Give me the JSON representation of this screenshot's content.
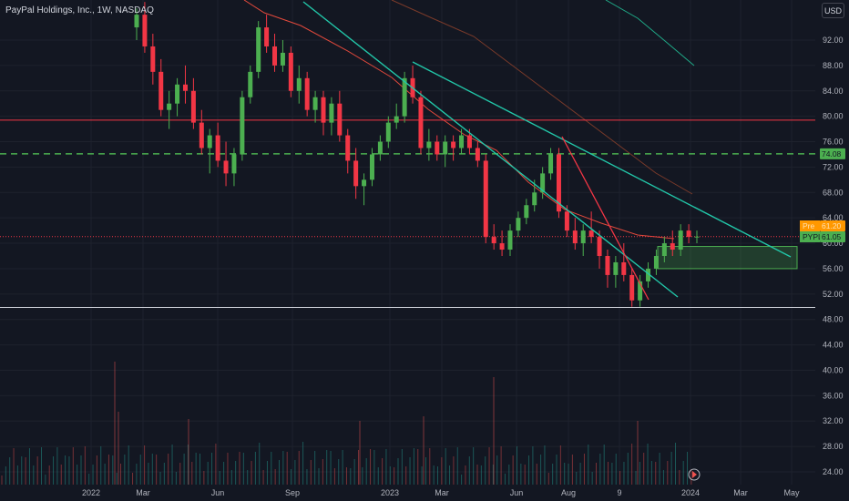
{
  "header": {
    "symbol_title": "PayPal Holdings, Inc., 1W, NASDAQ",
    "currency_label": "USD"
  },
  "price_axis": {
    "ticks": [
      "92.00",
      "88.00",
      "84.00",
      "80.00",
      "76.00",
      "72.00",
      "68.00",
      "64.00",
      "60.00",
      "56.00",
      "52.00",
      "48.00",
      "44.00",
      "40.00",
      "36.00",
      "32.00",
      "28.00",
      "24.00"
    ]
  },
  "time_axis": {
    "labels": [
      "2022",
      "Mar",
      "Jun",
      "Sep",
      "2023",
      "Mar",
      "Jun",
      "Aug",
      "9",
      "2024",
      "Mar",
      "May"
    ]
  },
  "price_flags": [
    {
      "name": "level-flag",
      "label": "",
      "value": "74.08",
      "color": "#4caf50",
      "text_color": "#131722"
    },
    {
      "name": "premarket-flag",
      "label": "Pre",
      "value": "61.20",
      "color": "#ff9800",
      "text_color": "#ffe0b2"
    },
    {
      "name": "symbol-flag",
      "label": "PYPL",
      "value": "61.05",
      "color": "#4caf50",
      "text_color": "#131722"
    }
  ],
  "colors": {
    "background": "#131722",
    "up": "#26a69a",
    "down": "#ef5350",
    "trendline": "#22c7a9",
    "resistance": "#f23645",
    "support_dashed": "#4caf50",
    "ma_fast": "#e2493c",
    "ma_slow": "#7a3a2a",
    "ma_long": "#1fa987",
    "zone_fill": "rgba(76,175,80,0.25)",
    "zone_border": "#4caf50"
  },
  "chart_data": {
    "type": "candlestick",
    "title": "PayPal Holdings, Inc., 1W, NASDAQ",
    "ylabel": "USD",
    "ylim": [
      22,
      96
    ],
    "x_labels": [
      "2022",
      "Mar",
      "Jun",
      "Sep",
      "2023",
      "Mar",
      "Jun",
      "Aug",
      "9",
      "2024",
      "Mar",
      "May"
    ],
    "candles_ohlc": [
      [
        94,
        97,
        92,
        96
      ],
      [
        96,
        98,
        90,
        91
      ],
      [
        91,
        93,
        85,
        87
      ],
      [
        87,
        89,
        80,
        81
      ],
      [
        81,
        84,
        78,
        82
      ],
      [
        82,
        86,
        80,
        85
      ],
      [
        85,
        88,
        82,
        84
      ],
      [
        84,
        86,
        78,
        79
      ],
      [
        79,
        81,
        74,
        75
      ],
      [
        75,
        78,
        71,
        77
      ],
      [
        77,
        79,
        72,
        73
      ],
      [
        73,
        76,
        69,
        71
      ],
      [
        71,
        75,
        69,
        74
      ],
      [
        74,
        84,
        73,
        83
      ],
      [
        83,
        88,
        82,
        87
      ],
      [
        87,
        95,
        86,
        94
      ],
      [
        94,
        96,
        90,
        91
      ],
      [
        91,
        93,
        87,
        88
      ],
      [
        88,
        92,
        87,
        90
      ],
      [
        90,
        91,
        83,
        84
      ],
      [
        84,
        88,
        82,
        86
      ],
      [
        86,
        87,
        80,
        81
      ],
      [
        81,
        84,
        79,
        83
      ],
      [
        83,
        84,
        77,
        79
      ],
      [
        79,
        83,
        77,
        82
      ],
      [
        82,
        84,
        76,
        77
      ],
      [
        77,
        78,
        71,
        73
      ],
      [
        73,
        75,
        67,
        69
      ],
      [
        69,
        71,
        66,
        70
      ],
      [
        70,
        75,
        69,
        74
      ],
      [
        74,
        77,
        73,
        76
      ],
      [
        76,
        80,
        75,
        79
      ],
      [
        79,
        82,
        78,
        80
      ],
      [
        80,
        87,
        79,
        86
      ],
      [
        86,
        88,
        82,
        83
      ],
      [
        83,
        84,
        74,
        75
      ],
      [
        75,
        78,
        73,
        76
      ],
      [
        76,
        77,
        73,
        74
      ],
      [
        74,
        77,
        72,
        76
      ],
      [
        76,
        77,
        73,
        75
      ],
      [
        75,
        78,
        74,
        77
      ],
      [
        77,
        78,
        74,
        75
      ],
      [
        75,
        76,
        72,
        73
      ],
      [
        73,
        74,
        60,
        61
      ],
      [
        61,
        63,
        59,
        60
      ],
      [
        60,
        62,
        58,
        59
      ],
      [
        59,
        63,
        58,
        62
      ],
      [
        62,
        65,
        61,
        64
      ],
      [
        64,
        67,
        63,
        66
      ],
      [
        66,
        70,
        65,
        68
      ],
      [
        68,
        72,
        67,
        71
      ],
      [
        71,
        75,
        70,
        74
      ],
      [
        74,
        75,
        64,
        65
      ],
      [
        65,
        66,
        61,
        62
      ],
      [
        62,
        64,
        59,
        60
      ],
      [
        60,
        63,
        58,
        62
      ],
      [
        62,
        65,
        60,
        61
      ],
      [
        61,
        62,
        56,
        58
      ],
      [
        58,
        59,
        53,
        55
      ],
      [
        55,
        58,
        53,
        57
      ],
      [
        57,
        60,
        54,
        55
      ],
      [
        55,
        56,
        50,
        51
      ],
      [
        51,
        55,
        50,
        54
      ],
      [
        54,
        57,
        53,
        56
      ],
      [
        56,
        59,
        55,
        58
      ],
      [
        58,
        61,
        57,
        60
      ],
      [
        60,
        62,
        58,
        59
      ],
      [
        59,
        63,
        58,
        62
      ],
      [
        62,
        63,
        60,
        61
      ],
      [
        61,
        62,
        60,
        61.05
      ]
    ],
    "moving_averages": [
      {
        "name": "",
        "color": "#e2493c",
        "points": [
          [
            268,
            0
          ],
          [
            290,
            14
          ],
          [
            330,
            28
          ],
          [
            380,
            55
          ],
          [
            430,
            85
          ],
          [
            470,
            120
          ],
          [
            510,
            148
          ],
          [
            545,
            165
          ],
          [
            580,
            200
          ],
          [
            620,
            230
          ],
          [
            660,
            245
          ],
          [
            700,
            258
          ],
          [
            740,
            262
          ]
        ]
      },
      {
        "name": "",
        "color": "#7a3a2a",
        "points": [
          [
            430,
            0
          ],
          [
            470,
            18
          ],
          [
            520,
            40
          ],
          [
            560,
            70
          ],
          [
            600,
            100
          ],
          [
            640,
            130
          ],
          [
            680,
            160
          ],
          [
            720,
            190
          ],
          [
            760,
            213
          ]
        ]
      },
      {
        "name": "",
        "color": "#1fa987",
        "points": [
          [
            665,
            0
          ],
          [
            700,
            20
          ],
          [
            730,
            45
          ],
          [
            762,
            72
          ]
        ]
      }
    ],
    "horizontal_levels": [
      {
        "value": 79.4,
        "color": "#f23645",
        "style": "solid"
      },
      {
        "value": 74.08,
        "color": "#4caf50",
        "style": "dashed"
      },
      {
        "value": 61.05,
        "color": "#f23645",
        "style": "dotted"
      },
      {
        "value": 49.9,
        "color": "#d1d4dc",
        "style": "solid"
      }
    ],
    "support_zone": {
      "from": 56,
      "to": 59.5
    },
    "volume_note": "",
    "volume": [
      3,
      5,
      6,
      4,
      9,
      7,
      5,
      4,
      6,
      5,
      8,
      10,
      6,
      4,
      5,
      12,
      7,
      5,
      6,
      4,
      7,
      8,
      9,
      6,
      5,
      5,
      6,
      7,
      9,
      8,
      6,
      7,
      10,
      5,
      4,
      6,
      5,
      7,
      4,
      5,
      5,
      6,
      4,
      12,
      6,
      8,
      7,
      6,
      5,
      9,
      6,
      5,
      11,
      7,
      8,
      6,
      5,
      7,
      9,
      8,
      6,
      10,
      12,
      9,
      7,
      6,
      8,
      7,
      6,
      8
    ]
  }
}
